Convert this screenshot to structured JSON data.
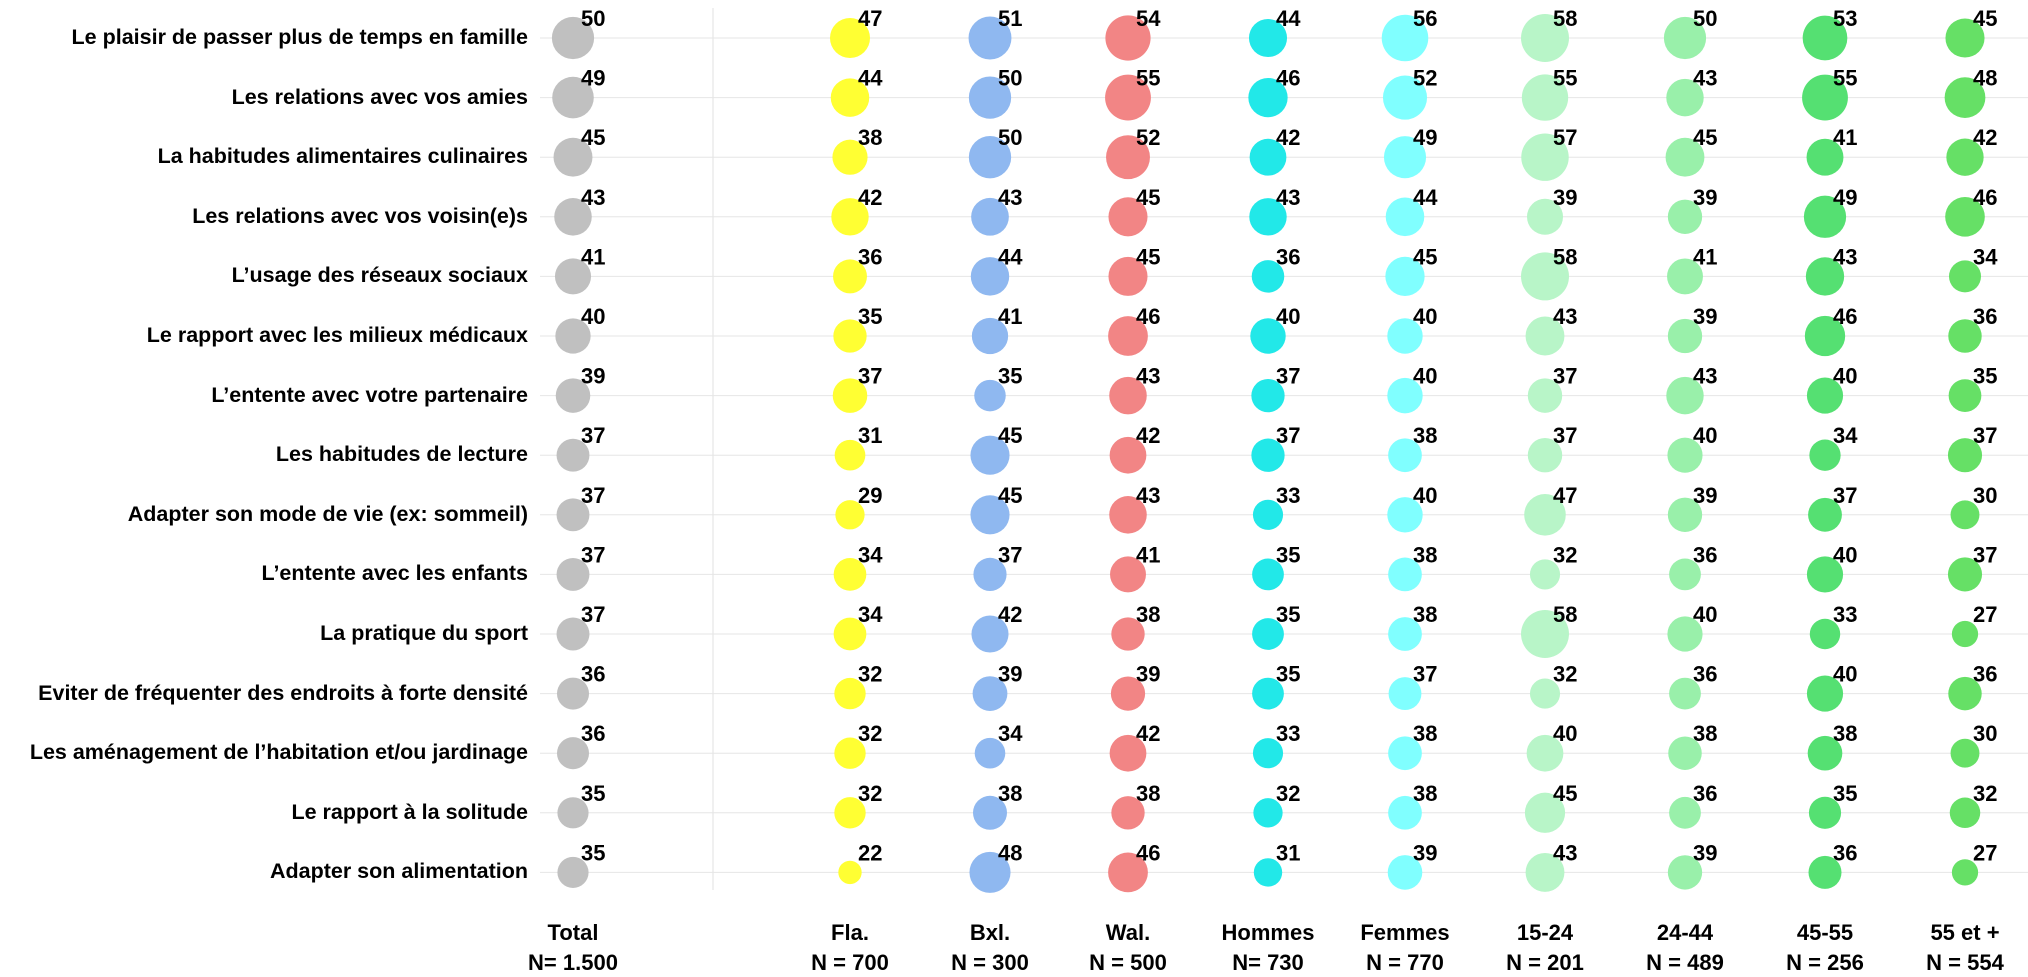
{
  "chart_data": {
    "type": "bubble",
    "categories": [
      "Le plaisir de passer plus de temps en famille",
      "Les relations avec vos amies",
      "La habitudes alimentaires culinaires",
      "Les relations avec vos voisin(e)s",
      "L’usage des réseaux sociaux",
      "Le rapport avec les milieux médicaux",
      "L’entente avec votre partenaire",
      "Les habitudes de lecture",
      "Adapter son mode de vie (ex: sommeil)",
      "L’entente avec les enfants",
      "La pratique du sport",
      "Eviter de fréquenter des endroits à forte densité",
      "Les aménagement de l’habitation et/ou jardinage",
      "Le rapport à la solitude",
      "Adapter son alimentation"
    ],
    "series": [
      {
        "name": "Total",
        "n": "N= 1.500",
        "color": "#c0c0c0",
        "values": [
          50,
          49,
          45,
          43,
          41,
          40,
          39,
          37,
          37,
          37,
          37,
          36,
          36,
          35,
          35
        ]
      },
      {
        "name": "Fla.",
        "n": "N = 700",
        "color": "#ffff33",
        "values": [
          47,
          44,
          38,
          42,
          36,
          35,
          37,
          31,
          29,
          34,
          34,
          32,
          32,
          32,
          22
        ]
      },
      {
        "name": "Bxl.",
        "n": "N = 300",
        "color": "#8fb8f0",
        "values": [
          51,
          50,
          50,
          43,
          44,
          41,
          35,
          45,
          45,
          37,
          42,
          39,
          34,
          38,
          48
        ]
      },
      {
        "name": "Wal.",
        "n": "N = 500",
        "color": "#f28585",
        "values": [
          54,
          55,
          52,
          45,
          45,
          46,
          43,
          42,
          43,
          41,
          38,
          39,
          42,
          38,
          46
        ]
      },
      {
        "name": "Hommes",
        "n": "N= 730",
        "color": "#22e8e8",
        "values": [
          44,
          46,
          42,
          43,
          36,
          40,
          37,
          37,
          33,
          35,
          35,
          35,
          33,
          32,
          31
        ]
      },
      {
        "name": "Femmes",
        "n": "N = 770",
        "color": "#80ffff",
        "values": [
          56,
          52,
          49,
          44,
          45,
          40,
          40,
          38,
          40,
          38,
          38,
          37,
          38,
          38,
          39
        ]
      },
      {
        "name": "15-24",
        "n": "N = 201",
        "color": "#b8f5c8",
        "values": [
          58,
          55,
          57,
          39,
          58,
          43,
          37,
          37,
          47,
          32,
          58,
          32,
          40,
          45,
          43
        ]
      },
      {
        "name": "24-44",
        "n": "N = 489",
        "color": "#99f0aa",
        "values": [
          50,
          43,
          45,
          39,
          41,
          39,
          43,
          40,
          39,
          36,
          40,
          36,
          38,
          36,
          39
        ]
      },
      {
        "name": "45-55",
        "n": "N = 256",
        "color": "#55e072",
        "values": [
          53,
          55,
          41,
          49,
          43,
          46,
          40,
          34,
          37,
          40,
          33,
          40,
          38,
          35,
          36
        ]
      },
      {
        "name": "55 et +",
        "n": "N = 554",
        "color": "#66e066",
        "values": [
          45,
          48,
          42,
          46,
          34,
          36,
          35,
          37,
          30,
          37,
          27,
          36,
          30,
          32,
          27
        ]
      }
    ]
  }
}
